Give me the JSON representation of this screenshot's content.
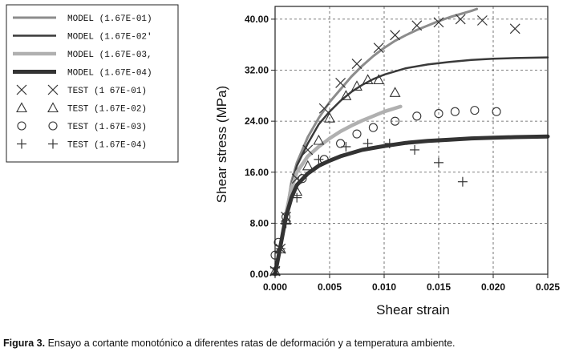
{
  "chart_data": {
    "type": "line",
    "xlabel": "Shear strain",
    "ylabel": "Shear stress (MPa)",
    "xlim": [
      0,
      0.025
    ],
    "ylim": [
      0,
      42
    ],
    "x_ticks": [
      "0.000",
      "0.005",
      "0.010",
      "0.015",
      "0.020",
      "0.025"
    ],
    "y_ticks": [
      "0.00",
      "8.00",
      "16.00",
      "24.00",
      "32.00",
      "40.00"
    ],
    "x_tick_values": [
      0,
      0.005,
      0.01,
      0.015,
      0.02,
      0.025
    ],
    "y_tick_values": [
      0,
      8,
      16,
      24,
      32,
      40
    ],
    "grid": true,
    "legend_placement": "outside-left",
    "series": [
      {
        "name": "MODEL (1.67E-01)",
        "kind": "line",
        "color": "#8c8c8c",
        "x": [
          0,
          0.0005,
          0.001,
          0.0015,
          0.002,
          0.003,
          0.004,
          0.005,
          0.006,
          0.007,
          0.008,
          0.009,
          0.01,
          0.011,
          0.012,
          0.013,
          0.014,
          0.015,
          0.016,
          0.017,
          0.018,
          0.0185
        ],
        "y": [
          0,
          4.5,
          9.5,
          14.5,
          17.5,
          21.5,
          24.5,
          27,
          29,
          31,
          32.7,
          34.2,
          35.5,
          36.6,
          37.5,
          38.3,
          39,
          39.7,
          40.3,
          40.8,
          41.3,
          41.6
        ]
      },
      {
        "name": "MODEL (1.67E-02'",
        "kind": "line",
        "color": "#3a3a3a",
        "x": [
          0,
          0.0005,
          0.001,
          0.0015,
          0.002,
          0.003,
          0.004,
          0.005,
          0.006,
          0.007,
          0.008,
          0.009,
          0.01,
          0.012,
          0.014,
          0.016,
          0.018,
          0.02,
          0.022,
          0.025
        ],
        "y": [
          0,
          4.5,
          9.5,
          14,
          17,
          20.5,
          23.5,
          25.5,
          27.2,
          28.6,
          29.7,
          30.6,
          31.3,
          32.3,
          32.9,
          33.3,
          33.6,
          33.8,
          33.9,
          34
        ]
      },
      {
        "name": "MODEL (1.67E-03,",
        "kind": "line",
        "color": "#b0b0b0",
        "x": [
          0,
          0.0005,
          0.001,
          0.0015,
          0.002,
          0.003,
          0.004,
          0.005,
          0.006,
          0.007,
          0.008,
          0.009,
          0.01,
          0.0115
        ],
        "y": [
          0,
          4.5,
          9.5,
          13.5,
          16,
          18.5,
          20,
          21.3,
          22.4,
          23.3,
          24.1,
          24.8,
          25.5,
          26.3
        ]
      },
      {
        "name": "MODEL (1.67E-04)",
        "kind": "line",
        "color": "#333333",
        "x": [
          0,
          0.0005,
          0.001,
          0.0015,
          0.002,
          0.003,
          0.004,
          0.005,
          0.006,
          0.008,
          0.01,
          0.012,
          0.014,
          0.016,
          0.018,
          0.02,
          0.022,
          0.025
        ],
        "y": [
          0,
          4.5,
          9,
          12,
          14,
          15.8,
          17,
          17.8,
          18.5,
          19.5,
          20.1,
          20.6,
          20.9,
          21.1,
          21.3,
          21.4,
          21.5,
          21.6
        ]
      },
      {
        "name": "TEST (1 67E-01)",
        "kind": "marker",
        "marker": "x",
        "color": "#333333",
        "x": [
          0,
          0.0005,
          0.001,
          0.002,
          0.003,
          0.0045,
          0.006,
          0.0075,
          0.0095,
          0.011,
          0.013,
          0.015,
          0.017,
          0.019,
          0.022
        ],
        "y": [
          0.5,
          4,
          9,
          15,
          19.5,
          26,
          30,
          33,
          35.5,
          37.5,
          39,
          39.5,
          40,
          39.8,
          38.5
        ]
      },
      {
        "name": "TEST (1.67E-02)",
        "kind": "marker",
        "marker": "triangle",
        "color": "#333333",
        "x": [
          0,
          0.0005,
          0.001,
          0.002,
          0.003,
          0.004,
          0.005,
          0.0065,
          0.0075,
          0.0085,
          0.0095,
          0.011
        ],
        "y": [
          0.5,
          4,
          8.5,
          13,
          17,
          21,
          24.5,
          28,
          29.5,
          30.5,
          30.5,
          28.5
        ]
      },
      {
        "name": "TEST (1.67E-03)",
        "kind": "marker",
        "marker": "circle",
        "color": "#333333",
        "x": [
          0,
          0.0003,
          0.001,
          0.0025,
          0.0045,
          0.006,
          0.0075,
          0.009,
          0.011,
          0.013,
          0.015,
          0.0165,
          0.0183,
          0.0203
        ],
        "y": [
          3,
          5,
          9,
          15,
          18,
          20.5,
          22,
          23,
          24,
          24.8,
          25.2,
          25.5,
          25.7,
          25.5
        ]
      },
      {
        "name": "TEST (1.67E-04)",
        "kind": "marker",
        "marker": "plus",
        "color": "#333333",
        "x": [
          0,
          0.0005,
          0.001,
          0.002,
          0.004,
          0.0065,
          0.0085,
          0.0105,
          0.0128,
          0.015,
          0.0172
        ],
        "y": [
          1,
          4,
          8,
          12,
          18,
          20,
          20.5,
          20.5,
          19.5,
          17.5,
          14.5
        ]
      }
    ]
  },
  "caption": {
    "label": "Figura 3.",
    "text": " Ensayo a cortante monotónico a diferentes ratas de deformación y a temperatura ambiente."
  }
}
